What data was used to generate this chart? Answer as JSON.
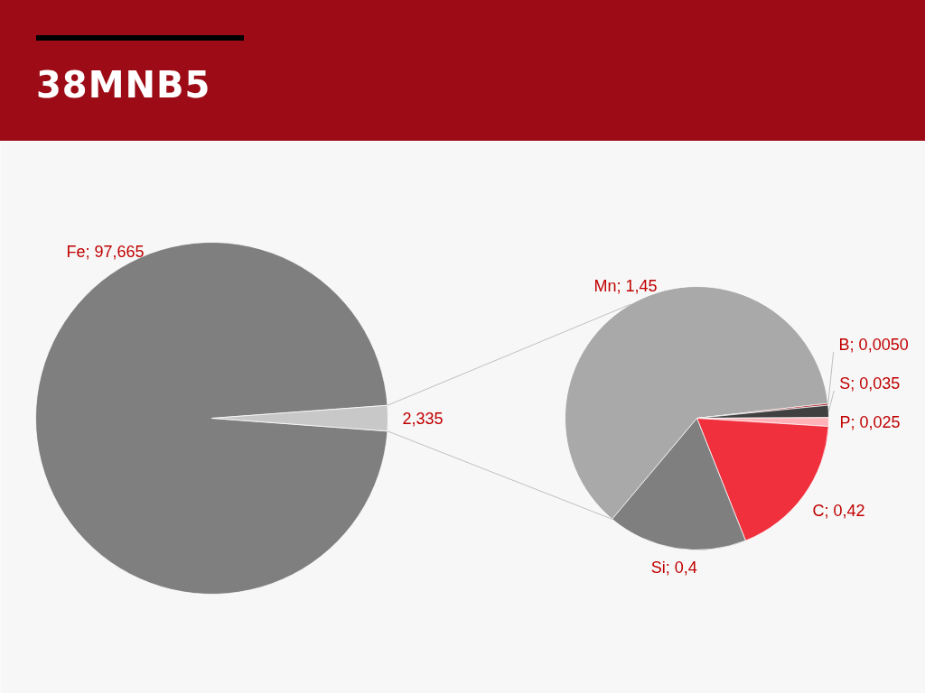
{
  "chart_data": [
    {
      "type": "pie",
      "title": "38MNB5",
      "categories": [
        "Fe",
        null
      ],
      "values": [
        97.665,
        2.335
      ],
      "colors": [
        "#7f7f7f",
        "#c8c8c8"
      ],
      "value_labels": [
        "97,665",
        "2,335"
      ]
    },
    {
      "type": "pie",
      "categories": [
        "Mn",
        "B",
        "S",
        "P",
        "C",
        "Si"
      ],
      "values": [
        1.45,
        0.005,
        0.035,
        0.025,
        0.42,
        0.4
      ],
      "colors": [
        "#a9a9a9",
        "#9e0c16",
        "#404040",
        "#ffb3b8",
        "#f0303c",
        "#7f7f7f"
      ],
      "value_labels": [
        "1,45",
        "0,0050",
        "0,035",
        "0,025",
        "0,42",
        "0,4"
      ]
    }
  ]
}
